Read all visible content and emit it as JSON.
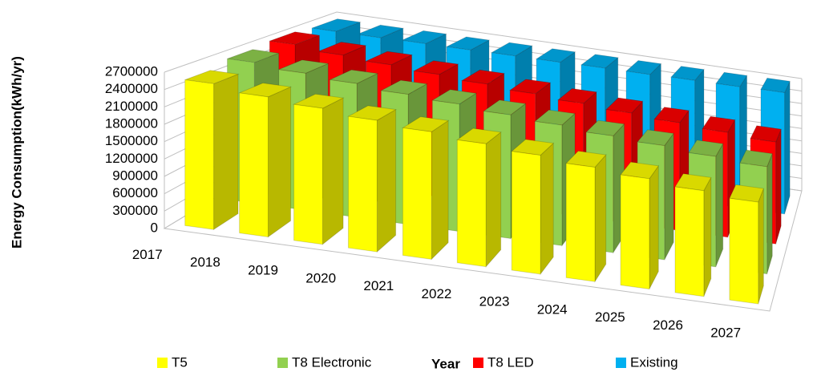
{
  "chart_data": {
    "type": "bar3d",
    "y_label": "Energy Consumption(kWh/yr)",
    "x_label": "Year",
    "categories": [
      "2017",
      "2018",
      "2019",
      "2020",
      "2021",
      "2022",
      "2023",
      "2024",
      "2025",
      "2026",
      "2027"
    ],
    "series": [
      {
        "name": "T5",
        "color": "#ffff00",
        "values": [
          2550000,
          2450000,
          2380000,
          2300000,
          2230000,
          2150000,
          2080000,
          2000000,
          1930000,
          1850000,
          1780000
        ]
      },
      {
        "name": "T8 Electronic",
        "color": "#92d050",
        "values": [
          2650000,
          2580000,
          2520000,
          2450000,
          2400000,
          2330000,
          2270000,
          2200000,
          2150000,
          2080000,
          2020000
        ]
      },
      {
        "name": "T8 LED",
        "color": "#ff0000",
        "values": [
          2700000,
          2620000,
          2560000,
          2500000,
          2440000,
          2380000,
          2320000,
          2260000,
          2200000,
          2140000,
          2080000
        ]
      },
      {
        "name": "Existing",
        "color": "#00b0f0",
        "values": [
          2650000,
          2650000,
          2660000,
          2660000,
          2670000,
          2670000,
          2680000,
          2680000,
          2690000,
          2690000,
          2700000
        ]
      }
    ],
    "ylim": [
      0,
      2700000
    ],
    "yticks": [
      0,
      300000,
      600000,
      900000,
      1200000,
      1500000,
      1800000,
      2100000,
      2400000,
      2700000
    ],
    "grid": true,
    "legend": "bottom"
  }
}
